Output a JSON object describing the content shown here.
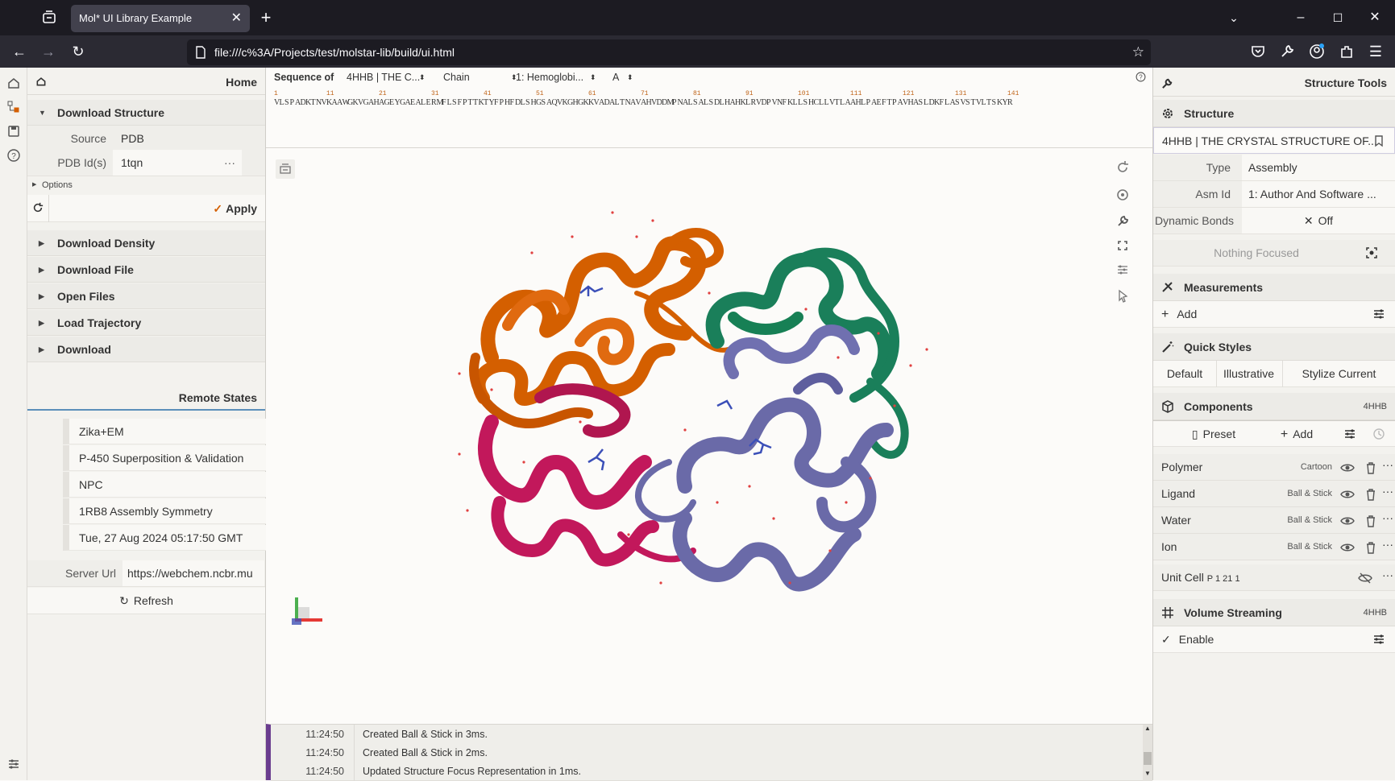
{
  "browser": {
    "tab_title": "Mol* UI Library Example",
    "url": "file:///c%3A/Projects/test/molstar-lib/build/ui.html"
  },
  "left_panel": {
    "home_title": "Home",
    "download_structure": {
      "title": "Download Structure",
      "source_label": "Source",
      "source_value": "PDB",
      "pdb_ids_label": "PDB Id(s)",
      "pdb_ids_value": "1tqn",
      "options_label": "Options",
      "apply_label": "Apply"
    },
    "sections": [
      "Download Density",
      "Download File",
      "Open Files",
      "Load Trajectory",
      "Download"
    ],
    "remote_states": {
      "title": "Remote States",
      "items": [
        "Zika+EM",
        "P-450 Superposition & Validation",
        "NPC",
        "1RB8 Assembly Symmetry",
        "Tue, 27 Aug 2024 05:17:50 GMT"
      ],
      "server_url_label": "Server Url",
      "server_url_value": "https://webchem.ncbr.mu",
      "refresh_label": "Refresh"
    }
  },
  "sequence": {
    "label": "Sequence of",
    "structure": "4HHB | THE C...",
    "mode": "Chain",
    "entity": "1: Hemoglobi...",
    "chain": "A",
    "tick_numbers": [
      "1",
      "11",
      "21",
      "31",
      "41",
      "51",
      "61",
      "71",
      "81",
      "91",
      "101",
      "111",
      "121",
      "131",
      "141"
    ],
    "residues": "VLSPADKTNVKAAWGKVGAHAGEYGAEALERMFLSFPTTKTYFPHFDLSHGSAQVKGHGKKVADALTNAVAHVDDMPNALSALSDLHAHKLRVDPVNFKLLSHCLLVTLAAHLPAEFTPAVHASLDKFLASVSTVLTSKYR"
  },
  "log": [
    {
      "time": "11:24:50",
      "message": "Created Ball & Stick in 3ms."
    },
    {
      "time": "11:24:50",
      "message": "Created Ball & Stick in 2ms."
    },
    {
      "time": "11:24:50",
      "message": "Updated Structure Focus Representation in 1ms."
    }
  ],
  "right_panel": {
    "title": "Structure Tools",
    "structure": {
      "title": "Structure",
      "selected": "4HHB | THE CRYSTAL STRUCTURE OF...",
      "type_label": "Type",
      "type_value": "Assembly",
      "asm_label": "Asm Id",
      "asm_value": "1: Author And Software ...",
      "bonds_label": "Dynamic Bonds",
      "bonds_value": "Off",
      "focus": "Nothing Focused"
    },
    "measurements": {
      "title": "Measurements",
      "add_label": "Add"
    },
    "quick_styles": {
      "title": "Quick Styles",
      "options": [
        "Default",
        "Illustrative",
        "Stylize Current"
      ]
    },
    "components": {
      "title": "Components",
      "badge": "4HHB",
      "preset_label": "Preset",
      "add_label": "Add",
      "items": [
        {
          "name": "Polymer",
          "repr": "Cartoon"
        },
        {
          "name": "Ligand",
          "repr": "Ball & Stick"
        },
        {
          "name": "Water",
          "repr": "Ball & Stick"
        },
        {
          "name": "Ion",
          "repr": "Ball & Stick"
        }
      ],
      "unit_cell_name": "Unit Cell",
      "unit_cell_group": "P 1 21 1"
    },
    "volume_streaming": {
      "title": "Volume Streaming",
      "badge": "4HHB",
      "enable_label": "Enable"
    }
  },
  "colors": {
    "chain_a": "#d45f00",
    "chain_b": "#1a7f5a",
    "chain_c": "#c2185b",
    "chain_d": "#6a6aa8",
    "log_accent": "#6a3d8f",
    "seq_numbers": "#c0651a"
  }
}
